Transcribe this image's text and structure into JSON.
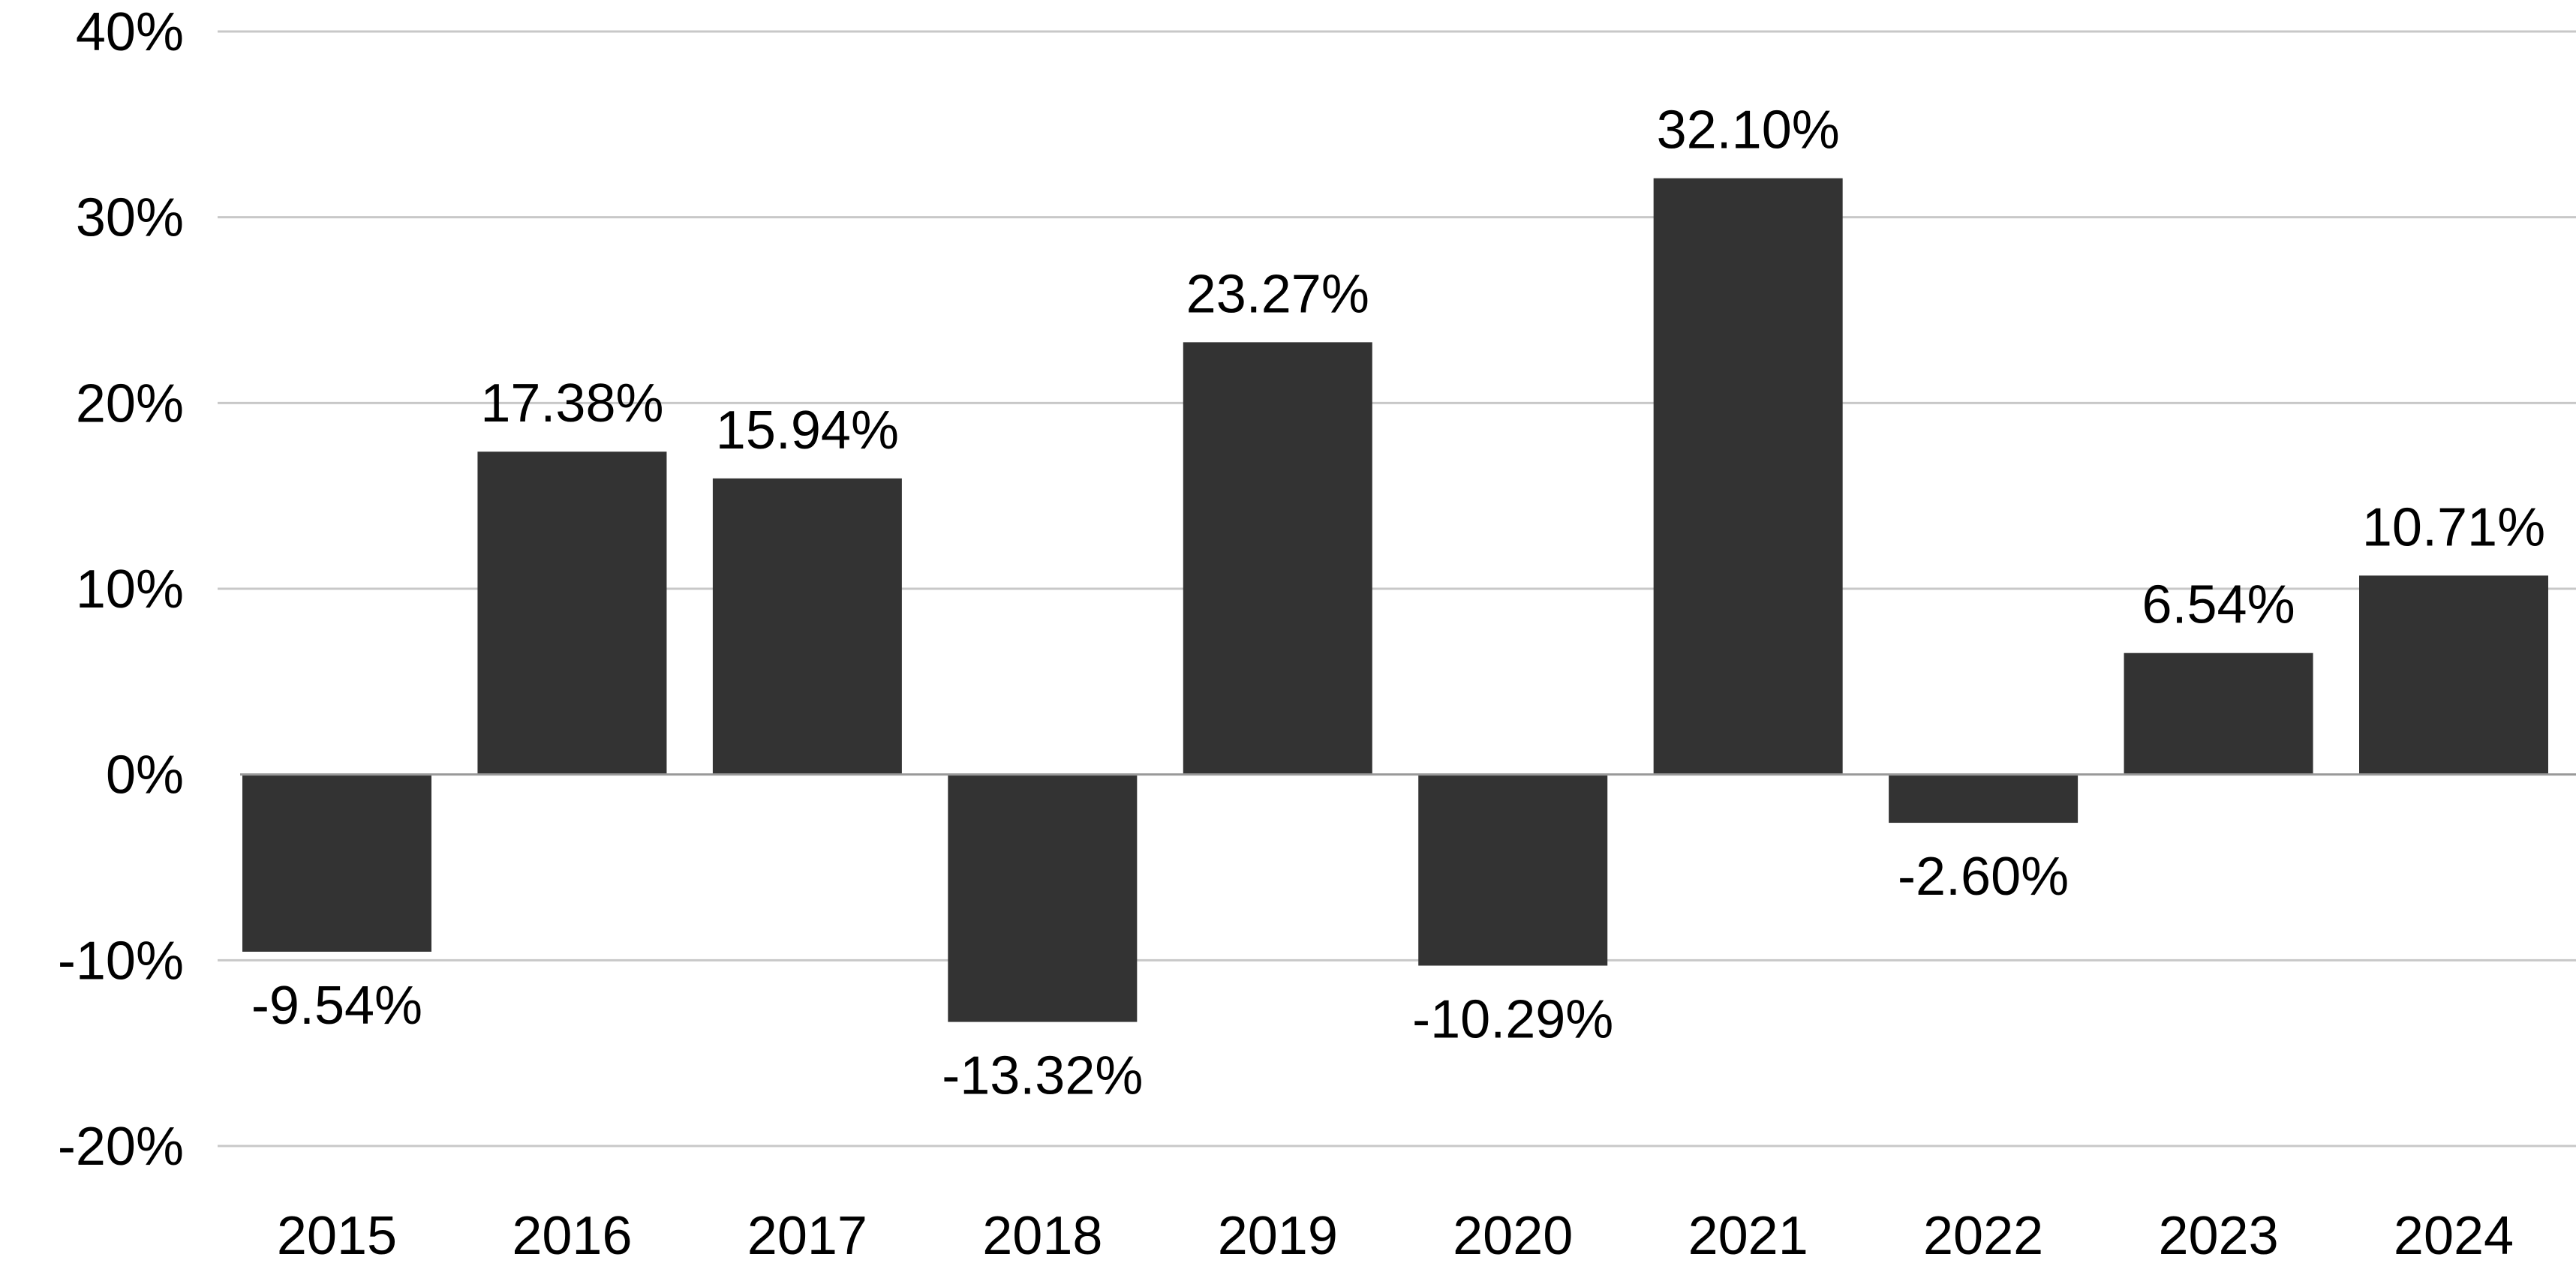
{
  "chart_data": {
    "type": "bar",
    "title": "",
    "xlabel": "",
    "ylabel": "",
    "categories": [
      "2015",
      "2016",
      "2017",
      "2018",
      "2019",
      "2020",
      "2021",
      "2022",
      "2023",
      "2024"
    ],
    "values": [
      -9.54,
      17.38,
      15.94,
      -13.32,
      23.27,
      -10.29,
      32.1,
      -2.6,
      6.54,
      10.71
    ],
    "data_labels": [
      "-9.54%",
      "17.38%",
      "15.94%",
      "-13.32%",
      "23.27%",
      "-10.29%",
      "32.10%",
      "-2.60%",
      "6.54%",
      "10.71%"
    ],
    "ylim": [
      -20,
      40
    ],
    "y_ticks": [
      40,
      30,
      20,
      10,
      0,
      -10,
      -20
    ],
    "y_tick_labels": [
      "40%",
      "30%",
      "20%",
      "10%",
      "0%",
      "-10%",
      "-20%"
    ],
    "grid": true,
    "legend": "none",
    "colors": {
      "bar": "#333333",
      "grid": "#c8c8c8",
      "zero_line": "#999999",
      "text": "#000000"
    }
  }
}
